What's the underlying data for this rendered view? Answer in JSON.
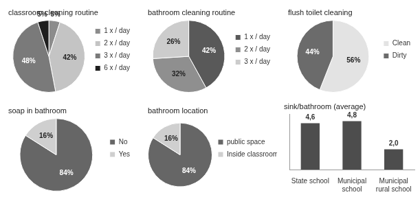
{
  "chart_data": [
    {
      "type": "pie",
      "title": "classroom cleaning routine",
      "categories": [
        "1 x / day",
        "2 x / day",
        "3 x / day",
        "6 x / day"
      ],
      "values": [
        5,
        42,
        48,
        5
      ],
      "value_labels": [
        "5%",
        "42%",
        "48%",
        "5%"
      ],
      "colors": [
        "#8c8c8c",
        "#c4c4c4",
        "#7a7a7a",
        "#1e1e1e"
      ],
      "legend": "right",
      "data_labels": true
    },
    {
      "type": "pie",
      "title": "bathroom cleaning routine",
      "categories": [
        "1 x / day",
        "2 x / day",
        "3 x / day"
      ],
      "values": [
        42,
        32,
        26
      ],
      "value_labels": [
        "42%",
        "32%",
        "26%"
      ],
      "colors": [
        "#595959",
        "#8f8f8f",
        "#cccccc"
      ],
      "legend": "right",
      "data_labels": true
    },
    {
      "type": "pie",
      "title": "flush toilet cleaning",
      "categories": [
        "Clean",
        "Dirty"
      ],
      "values": [
        56,
        44
      ],
      "value_labels": [
        "56%",
        "44%"
      ],
      "colors": [
        "#e3e3e3",
        "#6b6b6b"
      ],
      "legend": "right",
      "data_labels": true
    },
    {
      "type": "pie",
      "title": "soap in bathroom",
      "categories": [
        "No",
        "Yes"
      ],
      "values": [
        84,
        16
      ],
      "value_labels": [
        "84%",
        "16%"
      ],
      "colors": [
        "#666666",
        "#cfcfcf"
      ],
      "legend": "right",
      "data_labels": true
    },
    {
      "type": "pie",
      "title": "bathroom location",
      "categories": [
        "public space",
        "Inside classroom"
      ],
      "values": [
        84,
        16
      ],
      "value_labels": [
        "84%",
        "16%"
      ],
      "colors": [
        "#666666",
        "#cfcfcf"
      ],
      "legend": "right",
      "data_labels": true
    },
    {
      "type": "bar",
      "title": "sink/bathroom (average)",
      "categories": [
        "State school",
        "Municipal school",
        "Municipal rural school"
      ],
      "values": [
        4.6,
        4.8,
        2.0
      ],
      "value_labels": [
        "4,6",
        "4,8",
        "2,0"
      ],
      "color": "#4d4d4d",
      "ylim": [
        0,
        5.5
      ],
      "grid": false,
      "tick_labels": "x",
      "data_labels": true
    }
  ]
}
